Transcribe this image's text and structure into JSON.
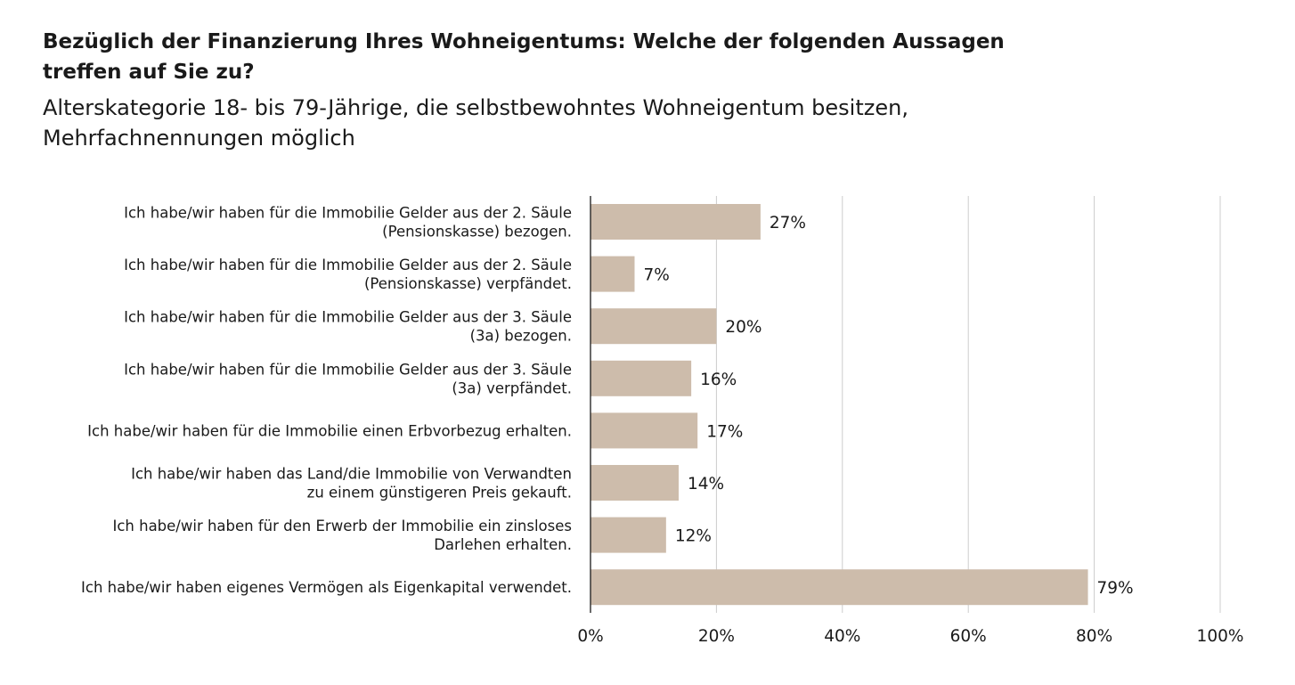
{
  "chart_data": {
    "type": "bar",
    "orientation": "horizontal",
    "title": "Bezüglich der Finanzierung Ihres Wohneigentums: Welche der folgenden Aussagen treffen auf Sie zu?",
    "subtitle": "Alterskategorie 18- bis 79-Jährige, die selbstbewohntes Wohneigentum besitzen, Mehrfachnennungen möglich",
    "categories": [
      [
        "Ich habe/wir haben für die Immobilie Gelder aus der 2. Säule",
        "(Pensionskasse) bezogen."
      ],
      [
        "Ich habe/wir haben für die Immobilie Gelder aus der 2. Säule",
        "(Pensionskasse) verpfändet."
      ],
      [
        "Ich habe/wir haben für die Immobilie Gelder aus der 3. Säule",
        "(3a) bezogen."
      ],
      [
        "Ich habe/wir haben für die Immobilie Gelder aus der 3. Säule",
        "(3a) verpfändet."
      ],
      [
        "Ich habe/wir haben für die Immobilie einen Erbvorbezug erhalten."
      ],
      [
        "Ich habe/wir haben das Land/die Immobilie von Verwandten",
        "zu einem günstigeren Preis gekauft."
      ],
      [
        "Ich habe/wir haben für den Erwerb der Immobilie ein zinsloses",
        "Darlehen erhalten."
      ],
      [
        "Ich habe/wir haben eigenes Vermögen als Eigenkapital verwendet."
      ]
    ],
    "values": [
      27,
      7,
      20,
      16,
      17,
      14,
      12,
      79
    ],
    "value_labels": [
      "27%",
      "7%",
      "20%",
      "16%",
      "17%",
      "14%",
      "12%",
      "79%"
    ],
    "xlim": [
      0,
      100
    ],
    "xticks": [
      0,
      20,
      40,
      60,
      80,
      100
    ],
    "xtick_labels": [
      "0%",
      "20%",
      "40%",
      "60%",
      "80%",
      "100%"
    ],
    "grid": true,
    "colors": {
      "bar": "#cdbcab",
      "grid": "#cccccc",
      "axis": "#1a1a1a",
      "text": "#1a1a1a"
    }
  }
}
